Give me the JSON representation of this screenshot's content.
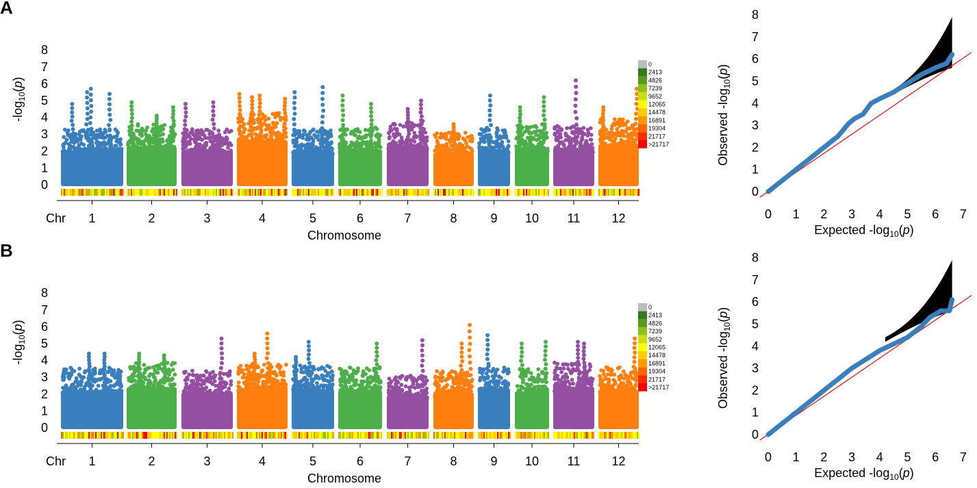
{
  "panels": [
    {
      "label": "A",
      "manhattan": {
        "type": "scatter",
        "subtype": "manhattan",
        "ylabel": "-log10(p)",
        "xlabel": "Chromosome",
        "x_prefix": "Chr",
        "ylim": [
          0,
          8
        ],
        "yticks": [
          0,
          1,
          2,
          3,
          4,
          5,
          6,
          7,
          8
        ],
        "chromosomes": [
          "1",
          "2",
          "3",
          "4",
          "5",
          "6",
          "7",
          "8",
          "9",
          "10",
          "11",
          "12"
        ],
        "colors": [
          "#3a7fbd",
          "#4caf4a",
          "#944ea2",
          "#ff7f0e"
        ],
        "background_max": [
          3.3,
          3.7,
          3.3,
          4.3,
          3.3,
          3.4,
          3.8,
          3.1,
          3.4,
          3.6,
          3.5,
          3.9
        ],
        "peaks": [
          {
            "chr": "1",
            "pos": 0.18,
            "y": 4.8
          },
          {
            "chr": "1",
            "pos": 0.42,
            "y": 5.5
          },
          {
            "chr": "1",
            "pos": 0.48,
            "y": 5.7
          },
          {
            "chr": "1",
            "pos": 0.78,
            "y": 5.4
          },
          {
            "chr": "2",
            "pos": 0.1,
            "y": 4.9
          },
          {
            "chr": "2",
            "pos": 0.6,
            "y": 4.1
          },
          {
            "chr": "2",
            "pos": 0.93,
            "y": 4.6
          },
          {
            "chr": "3",
            "pos": 0.08,
            "y": 4.8
          },
          {
            "chr": "3",
            "pos": 0.62,
            "y": 4.9
          },
          {
            "chr": "4",
            "pos": 0.05,
            "y": 5.4
          },
          {
            "chr": "4",
            "pos": 0.3,
            "y": 5.2
          },
          {
            "chr": "4",
            "pos": 0.45,
            "y": 5.3
          },
          {
            "chr": "4",
            "pos": 0.95,
            "y": 5.1
          },
          {
            "chr": "5",
            "pos": 0.07,
            "y": 5.5
          },
          {
            "chr": "5",
            "pos": 0.73,
            "y": 5.8
          },
          {
            "chr": "6",
            "pos": 0.1,
            "y": 5.3
          },
          {
            "chr": "6",
            "pos": 0.75,
            "y": 4.8
          },
          {
            "chr": "7",
            "pos": 0.5,
            "y": 4.5
          },
          {
            "chr": "7",
            "pos": 0.82,
            "y": 5.0
          },
          {
            "chr": "8",
            "pos": 0.5,
            "y": 3.6
          },
          {
            "chr": "9",
            "pos": 0.38,
            "y": 5.3
          },
          {
            "chr": "10",
            "pos": 0.15,
            "y": 4.6
          },
          {
            "chr": "10",
            "pos": 0.85,
            "y": 5.2
          },
          {
            "chr": "11",
            "pos": 0.55,
            "y": 6.2
          },
          {
            "chr": "12",
            "pos": 0.12,
            "y": 4.6
          },
          {
            "chr": "12",
            "pos": 0.95,
            "y": 5.7
          }
        ]
      },
      "density_legend": [
        "0",
        "2413",
        "4826",
        "7239",
        "9652",
        "12065",
        "14478",
        "16891",
        "19304",
        "21717",
        ">21717"
      ],
      "density_colors": [
        "#bdbdbd",
        "#2e7d1c",
        "#5a9a1a",
        "#8fbf1a",
        "#c9df14",
        "#ffff00",
        "#ffcc00",
        "#ff9900",
        "#ff6600",
        "#ff2a00",
        "#ff0000"
      ],
      "qq": {
        "type": "scatter",
        "subtype": "qq",
        "xlabel": "Expected -log10(p)",
        "ylabel": "Observed -log10(p)",
        "xlim": [
          0,
          7
        ],
        "ylim": [
          0,
          8
        ],
        "xticks": [
          0,
          1,
          2,
          3,
          4,
          5,
          6,
          7
        ],
        "yticks": [
          0,
          1,
          2,
          3,
          4,
          5,
          6,
          7,
          8
        ],
        "confidence_band_top_y": 7.9,
        "curve": [
          [
            0,
            0
          ],
          [
            1,
            1
          ],
          [
            2,
            2
          ],
          [
            2.5,
            2.5
          ],
          [
            2.9,
            3.1
          ],
          [
            3.1,
            3.3
          ],
          [
            3.4,
            3.5
          ],
          [
            3.7,
            4.0
          ],
          [
            4.0,
            4.2
          ],
          [
            4.5,
            4.5
          ],
          [
            5.0,
            4.9
          ],
          [
            5.5,
            5.3
          ],
          [
            6.0,
            5.6
          ],
          [
            6.4,
            5.8
          ],
          [
            6.6,
            6.2
          ]
        ]
      }
    },
    {
      "label": "B",
      "manhattan": {
        "type": "scatter",
        "subtype": "manhattan",
        "ylabel": "-log10(p)",
        "xlabel": "Chromosome",
        "x_prefix": "Chr",
        "ylim": [
          0,
          8
        ],
        "yticks": [
          0,
          1,
          2,
          3,
          4,
          5,
          6,
          7,
          8
        ],
        "chromosomes": [
          "1",
          "2",
          "3",
          "4",
          "5",
          "6",
          "7",
          "8",
          "9",
          "10",
          "11",
          "12"
        ],
        "colors": [
          "#3a7fbd",
          "#4caf4a",
          "#944ea2",
          "#ff7f0e"
        ],
        "background_max": [
          3.6,
          3.9,
          3.4,
          3.8,
          3.7,
          3.6,
          3.1,
          3.4,
          3.8,
          3.5,
          3.9,
          3.6
        ],
        "peaks": [
          {
            "chr": "1",
            "pos": 0.45,
            "y": 4.4
          },
          {
            "chr": "1",
            "pos": 0.7,
            "y": 4.4
          },
          {
            "chr": "2",
            "pos": 0.25,
            "y": 4.4
          },
          {
            "chr": "2",
            "pos": 0.75,
            "y": 4.3
          },
          {
            "chr": "3",
            "pos": 0.78,
            "y": 5.3
          },
          {
            "chr": "4",
            "pos": 0.6,
            "y": 5.6
          },
          {
            "chr": "4",
            "pos": 0.35,
            "y": 4.4
          },
          {
            "chr": "5",
            "pos": 0.4,
            "y": 5.1
          },
          {
            "chr": "5",
            "pos": 0.1,
            "y": 4.2
          },
          {
            "chr": "6",
            "pos": 0.88,
            "y": 5.0
          },
          {
            "chr": "7",
            "pos": 0.85,
            "y": 5.2
          },
          {
            "chr": "8",
            "pos": 0.9,
            "y": 6.1
          },
          {
            "chr": "8",
            "pos": 0.7,
            "y": 5.0
          },
          {
            "chr": "9",
            "pos": 0.3,
            "y": 5.5
          },
          {
            "chr": "10",
            "pos": 0.2,
            "y": 5.0
          },
          {
            "chr": "10",
            "pos": 0.9,
            "y": 5.1
          },
          {
            "chr": "11",
            "pos": 0.6,
            "y": 5.1
          },
          {
            "chr": "11",
            "pos": 0.75,
            "y": 5.0
          },
          {
            "chr": "12",
            "pos": 0.9,
            "y": 5.3
          }
        ]
      },
      "density_legend": [
        "0",
        "2413",
        "4826",
        "7239",
        "9652",
        "12065",
        "14478",
        "16891",
        "19304",
        "21717",
        ">21717"
      ],
      "density_colors": [
        "#bdbdbd",
        "#2e7d1c",
        "#5a9a1a",
        "#8fbf1a",
        "#c9df14",
        "#ffff00",
        "#ffcc00",
        "#ff9900",
        "#ff6600",
        "#ff2a00",
        "#ff0000"
      ],
      "qq": {
        "type": "scatter",
        "subtype": "qq",
        "xlabel": "Expected -log10(p)",
        "ylabel": "Observed -log10(p)",
        "xlim": [
          0,
          7
        ],
        "ylim": [
          0,
          8
        ],
        "xticks": [
          0,
          1,
          2,
          3,
          4,
          5,
          6,
          7
        ],
        "yticks": [
          0,
          1,
          2,
          3,
          4,
          5,
          6,
          7,
          8
        ],
        "confidence_band_top_y": 7.9,
        "curve": [
          [
            0,
            0
          ],
          [
            1,
            1
          ],
          [
            2,
            2
          ],
          [
            3,
            3
          ],
          [
            3.5,
            3.4
          ],
          [
            4,
            3.8
          ],
          [
            4.5,
            4.1
          ],
          [
            5,
            4.4
          ],
          [
            5.5,
            4.9
          ],
          [
            5.8,
            5.3
          ],
          [
            6.2,
            5.6
          ],
          [
            6.5,
            5.6
          ],
          [
            6.6,
            6.1
          ]
        ]
      }
    }
  ]
}
